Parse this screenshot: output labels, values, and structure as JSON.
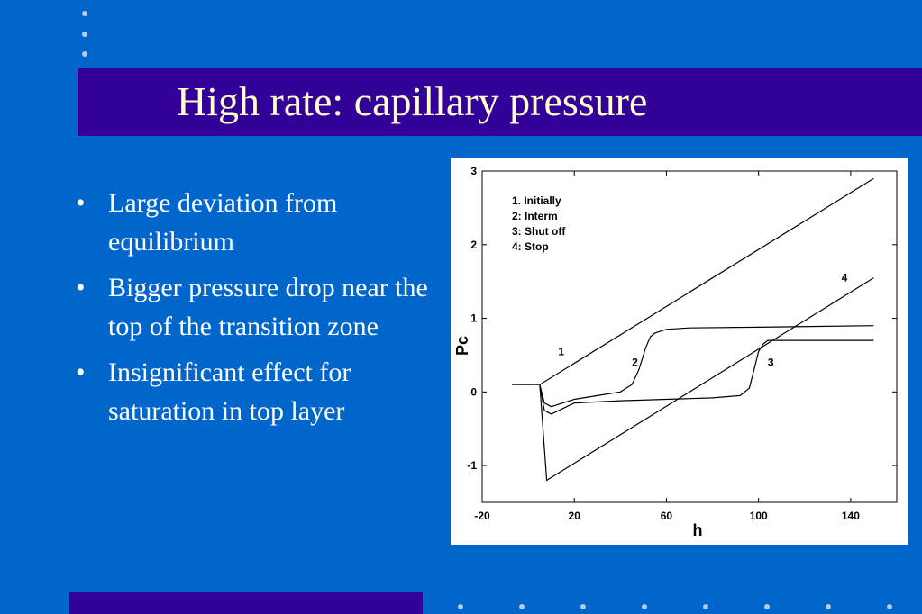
{
  "slide": {
    "title": "High rate: capillary pressure",
    "colors": {
      "background": "#0066cc",
      "title_bar": "#330099",
      "title_text": "#ffffcc",
      "body_text": "#ffffff"
    },
    "bullets": [
      "Large deviation from equilibrium",
      "Bigger pressure drop near the top of the transition zone",
      "Insignificant effect for saturation in top layer"
    ]
  },
  "chart_data": {
    "type": "line",
    "xlabel": "h",
    "ylabel": "Pc",
    "xlim": [
      -20,
      160
    ],
    "ylim": [
      -1.5,
      3
    ],
    "xticks": [
      -20,
      20,
      60,
      100,
      140
    ],
    "yticks": [
      -1,
      0,
      1,
      2,
      3
    ],
    "legend_position": "top-left",
    "legend": [
      "1. Initially",
      "2: Interm",
      "3: Shut off",
      "4: Stop"
    ],
    "series": [
      {
        "name": "1",
        "label_at": [
          13,
          0.5
        ],
        "x": [
          -7,
          5,
          150
        ],
        "y": [
          0.1,
          0.1,
          2.9
        ]
      },
      {
        "name": "2",
        "label_at": [
          45,
          0.35
        ],
        "x": [
          5,
          7,
          10,
          20,
          30,
          40,
          45,
          48,
          51,
          53,
          55,
          60,
          70,
          100,
          150
        ],
        "y": [
          0.1,
          -0.15,
          -0.2,
          -0.1,
          -0.05,
          0.0,
          0.1,
          0.3,
          0.6,
          0.75,
          0.8,
          0.85,
          0.87,
          0.88,
          0.9
        ]
      },
      {
        "name": "3",
        "label_at": [
          104,
          0.35
        ],
        "x": [
          5,
          7,
          10,
          20,
          40,
          60,
          80,
          92,
          96,
          98,
          100,
          102,
          104,
          110,
          150
        ],
        "y": [
          0.1,
          -0.25,
          -0.3,
          -0.15,
          -0.12,
          -0.1,
          -0.08,
          -0.05,
          0.05,
          0.3,
          0.55,
          0.65,
          0.7,
          0.7,
          0.7
        ]
      },
      {
        "name": "4",
        "label_at": [
          136,
          1.5
        ],
        "x": [
          5,
          8,
          150
        ],
        "y": [
          0.1,
          -1.2,
          1.55
        ]
      }
    ]
  }
}
